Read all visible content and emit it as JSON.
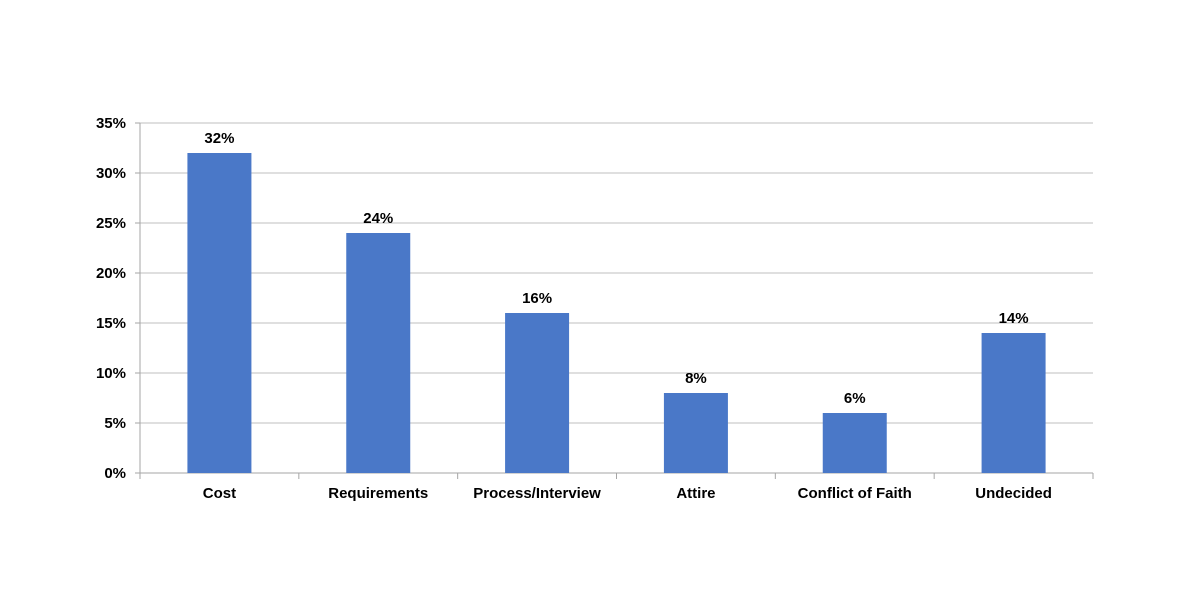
{
  "chart_data": {
    "type": "bar",
    "categories": [
      "Cost",
      "Requirements",
      "Process/Interview",
      "Attire",
      "Conflict of Faith",
      "Undecided"
    ],
    "values": [
      32,
      24,
      16,
      8,
      6,
      14
    ],
    "data_labels": [
      "32%",
      "24%",
      "16%",
      "8%",
      "6%",
      "14%"
    ],
    "ylim": [
      0,
      35
    ],
    "yticks": [
      0,
      5,
      10,
      15,
      20,
      25,
      30,
      35
    ],
    "ytick_labels": [
      "0%",
      "5%",
      "10%",
      "15%",
      "20%",
      "25%",
      "30%",
      "35%"
    ],
    "grid": true,
    "legend": "none",
    "colors": {
      "bar": "#4a78c8",
      "gridline": "#bfbfbf",
      "axis": "#a6a6a6",
      "text": "#000000"
    }
  }
}
